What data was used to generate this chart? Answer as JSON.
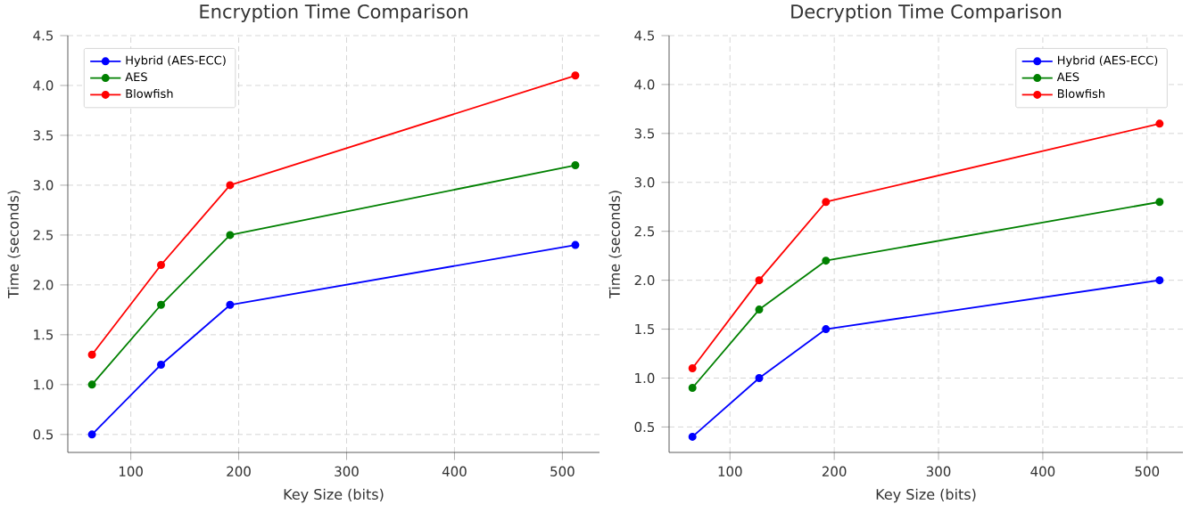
{
  "chart_data": [
    {
      "type": "line",
      "title": "Encryption Time Comparison",
      "xlabel": "Key Size (bits)",
      "ylabel": "Time (seconds)",
      "x": [
        64,
        128,
        192,
        512
      ],
      "series": [
        {
          "name": "Hybrid (AES-ECC)",
          "color": "#0000ff",
          "values": [
            0.5,
            1.2,
            1.8,
            2.4
          ]
        },
        {
          "name": "AES",
          "color": "#008000",
          "values": [
            1.0,
            1.8,
            2.5,
            3.2
          ]
        },
        {
          "name": "Blowfish",
          "color": "#ff0000",
          "values": [
            1.3,
            2.2,
            3.0,
            4.1
          ]
        }
      ],
      "xlim": [
        41.6,
        534.4
      ],
      "ylim": [
        0.32,
        4.5
      ],
      "xticks": [
        100,
        200,
        300,
        400,
        500
      ],
      "yticks": [
        0.5,
        {
          "value": 1.0,
          "label": "1.0"
        },
        1.5,
        {
          "value": 2.0,
          "label": "2.0"
        },
        2.5,
        {
          "value": 3.0,
          "label": "3.0"
        },
        3.5,
        {
          "value": 4.0,
          "label": "4.0"
        },
        4.5
      ],
      "grid": true,
      "legend": "top left",
      "marker": "circle",
      "line_style": "solid"
    },
    {
      "type": "line",
      "title": "Decryption Time Comparison",
      "xlabel": "Key Size (bits)",
      "ylabel": "Time (seconds)",
      "x": [
        64,
        128,
        192,
        512
      ],
      "series": [
        {
          "name": "Hybrid (AES-ECC)",
          "color": "#0000ff",
          "values": [
            0.4,
            1.0,
            1.5,
            2.0
          ]
        },
        {
          "name": "AES",
          "color": "#008000",
          "values": [
            0.9,
            1.7,
            2.2,
            2.8
          ]
        },
        {
          "name": "Blowfish",
          "color": "#ff0000",
          "values": [
            1.1,
            2.0,
            2.8,
            3.6
          ]
        }
      ],
      "xlim": [
        41.6,
        534.4
      ],
      "ylim": [
        0.24,
        4.5
      ],
      "xticks": [
        100,
        200,
        300,
        400,
        500
      ],
      "yticks": [
        0.5,
        {
          "value": 1.0,
          "label": "1.0"
        },
        1.5,
        {
          "value": 2.0,
          "label": "2.0"
        },
        2.5,
        {
          "value": 3.0,
          "label": "3.0"
        },
        3.5,
        {
          "value": 4.0,
          "label": "4.0"
        },
        4.5
      ],
      "grid": true,
      "legend": "top right",
      "marker": "circle",
      "line_style": "solid"
    }
  ]
}
